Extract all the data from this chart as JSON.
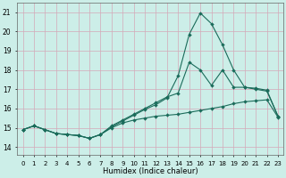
{
  "xlabel": "Humidex (Indice chaleur)",
  "x_ticks": [
    0,
    1,
    2,
    3,
    4,
    5,
    6,
    7,
    8,
    9,
    10,
    11,
    12,
    13,
    14,
    15,
    16,
    17,
    18,
    19,
    20,
    21,
    22,
    23
  ],
  "ylim": [
    13.6,
    21.5
  ],
  "xlim": [
    -0.5,
    23.5
  ],
  "yticks": [
    14,
    15,
    16,
    17,
    18,
    19,
    20,
    21
  ],
  "background_color": "#cceee8",
  "grid_color": "#d4a8b8",
  "line_color": "#1a6b5a",
  "line1_y": [
    14.9,
    15.1,
    14.9,
    14.7,
    14.65,
    14.6,
    14.45,
    14.65,
    15.0,
    15.25,
    15.4,
    15.5,
    15.6,
    15.65,
    15.7,
    15.8,
    15.9,
    16.0,
    16.1,
    16.25,
    16.35,
    16.4,
    16.45,
    15.55
  ],
  "line2_y": [
    14.9,
    15.1,
    14.9,
    14.7,
    14.65,
    14.6,
    14.45,
    14.65,
    15.1,
    15.4,
    15.7,
    16.0,
    16.3,
    16.6,
    16.8,
    18.4,
    18.0,
    17.2,
    18.0,
    17.1,
    17.1,
    17.0,
    16.9,
    15.6
  ],
  "line3_y": [
    14.9,
    15.1,
    14.9,
    14.7,
    14.65,
    14.6,
    14.45,
    14.65,
    15.05,
    15.35,
    15.65,
    15.95,
    16.2,
    16.55,
    17.7,
    19.85,
    20.95,
    20.4,
    19.3,
    18.0,
    17.1,
    17.05,
    16.95,
    15.6
  ]
}
